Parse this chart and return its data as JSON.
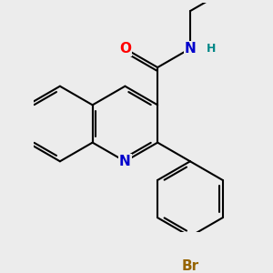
{
  "bg_color": "#ececec",
  "bond_color": "#000000",
  "bond_width": 1.5,
  "atom_colors": {
    "O": "#ff0000",
    "N_amide": "#0000cc",
    "N_ring": "#0000cc",
    "Br": "#966400",
    "H": "#008888",
    "C": "#000000"
  },
  "font_size_main": 11,
  "font_size_small": 9,
  "bl": 0.82
}
